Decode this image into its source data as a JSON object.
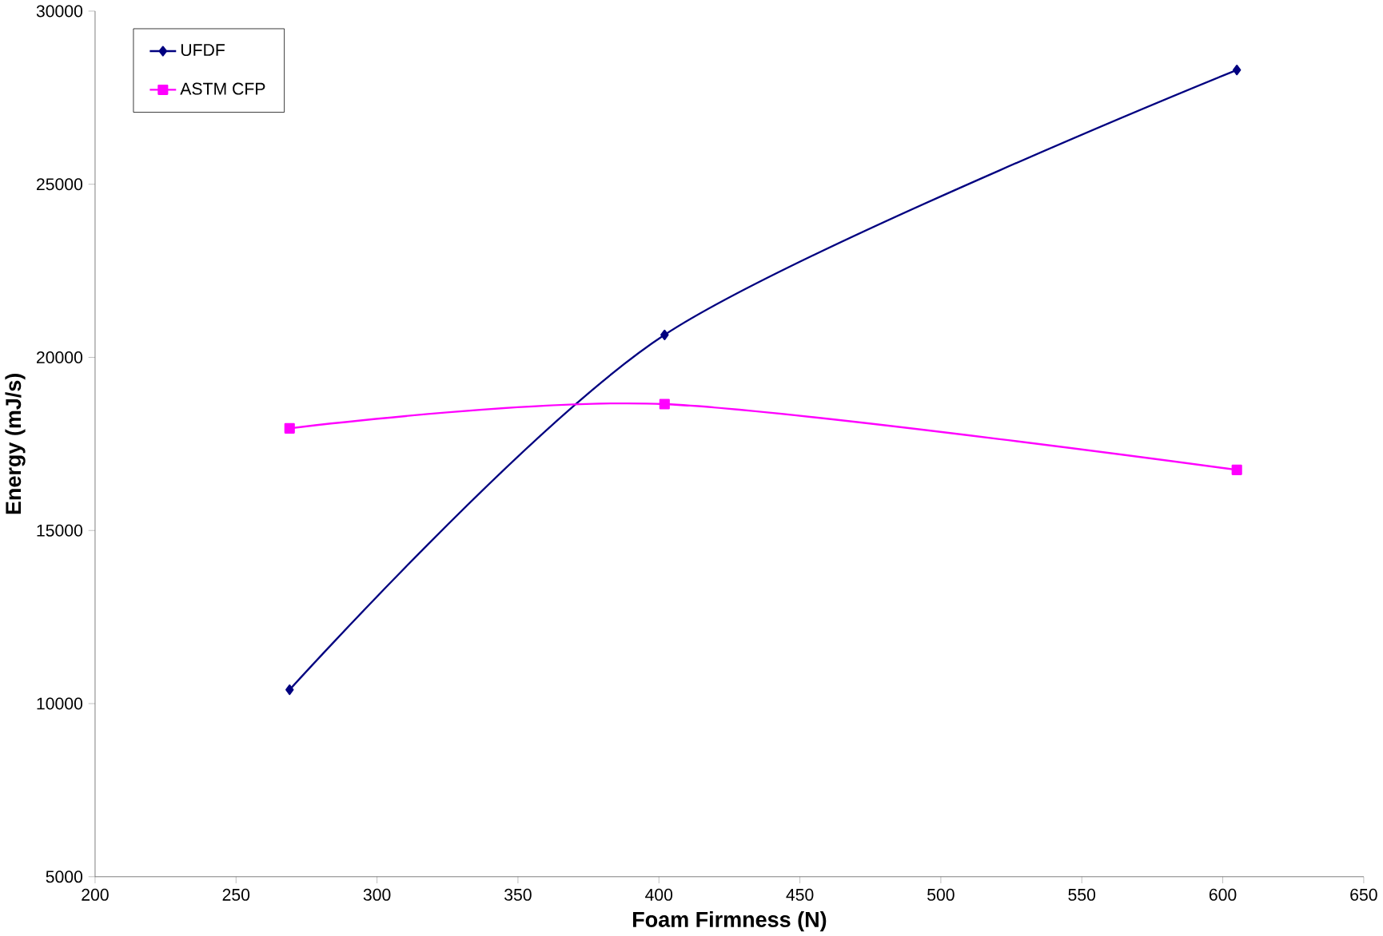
{
  "chart_data": {
    "type": "line",
    "xlabel": "Foam Firmness (N)",
    "ylabel": "Energy (mJ/s)",
    "x": [
      269,
      402,
      605
    ],
    "series": [
      {
        "name": "UFDF",
        "color": "#000080",
        "marker": "diamond",
        "values": [
          10400,
          20650,
          28300
        ]
      },
      {
        "name": "ASTM CFP",
        "color": "#ff00ff",
        "marker": "square",
        "values": [
          17950,
          18650,
          16750
        ]
      }
    ],
    "xlim": [
      200,
      650
    ],
    "xticks": [
      200,
      250,
      300,
      350,
      400,
      450,
      500,
      550,
      600,
      650
    ],
    "ylim": [
      5000,
      30000
    ],
    "yticks": [
      5000,
      10000,
      15000,
      20000,
      25000,
      30000
    ],
    "grid": false,
    "legend": "top left"
  }
}
